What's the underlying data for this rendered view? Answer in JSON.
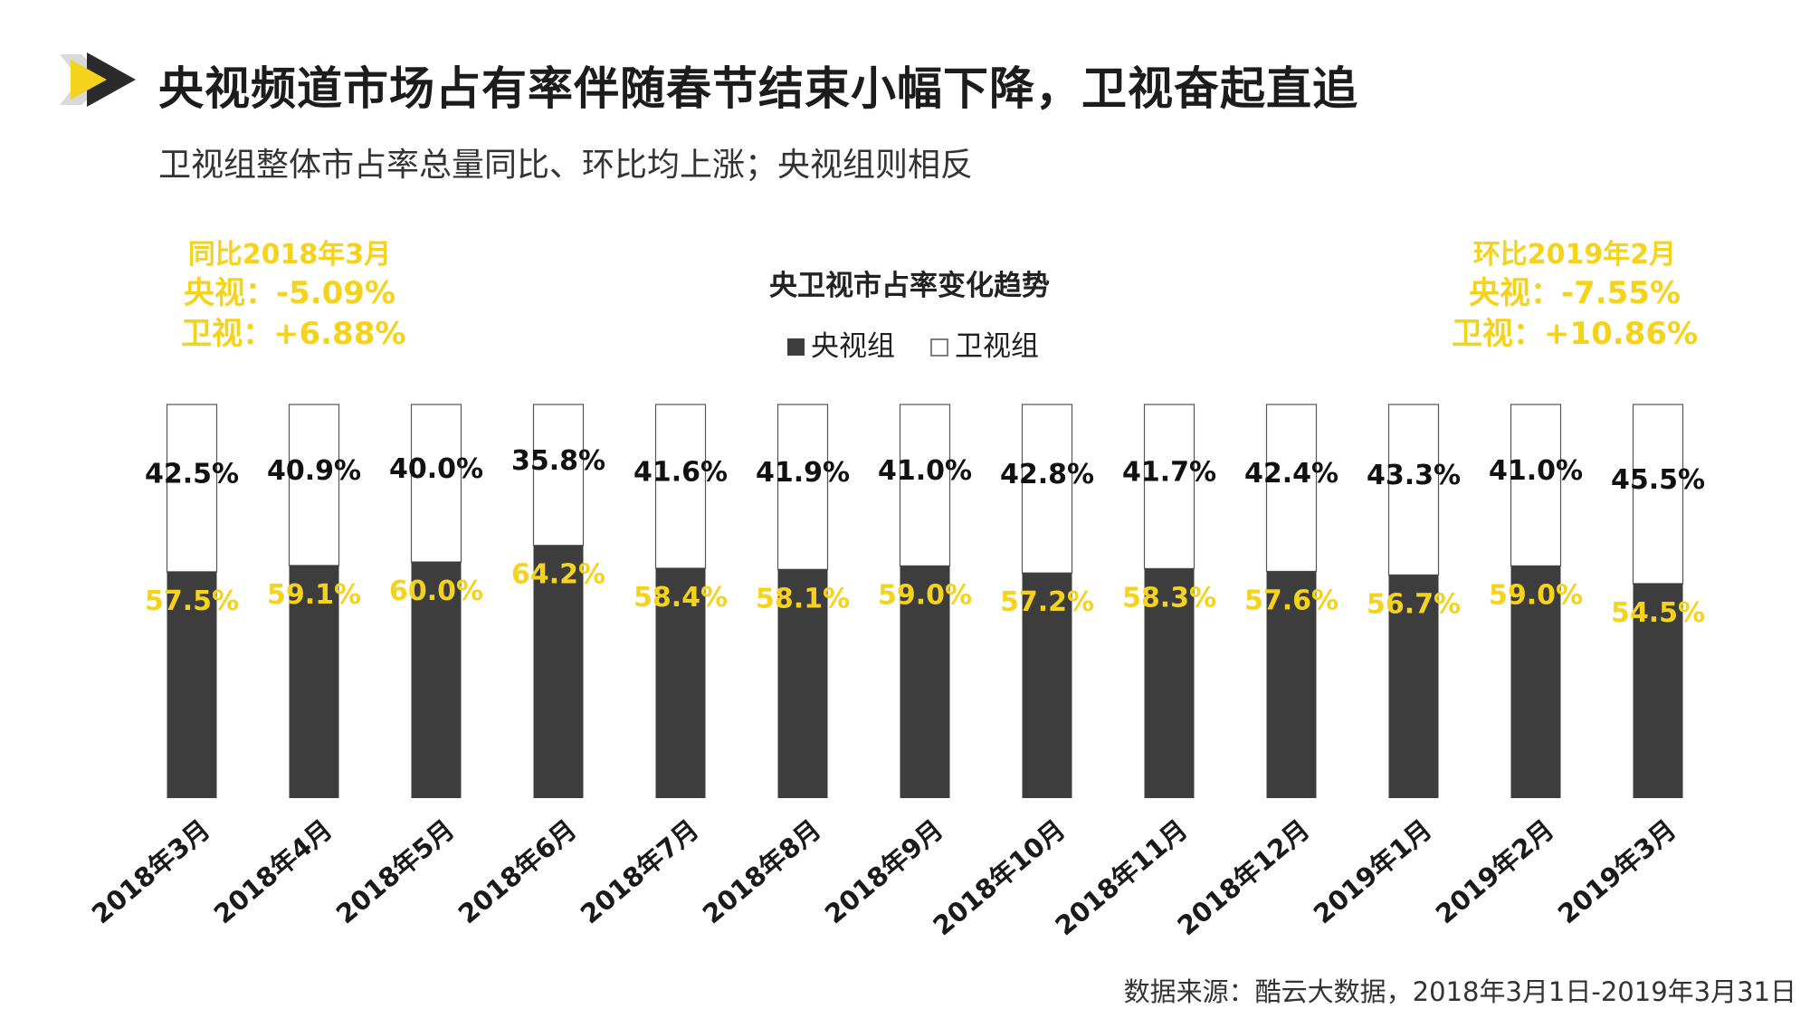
{
  "header": {
    "title": "央视频道市场占有率伴随春节结束小幅下降，卫视奋起直追",
    "subtitle": "卫视组整体市占率总量同比、环比均上涨；央视组则相反"
  },
  "comparison_yoy": {
    "heading": "同比2018年3月",
    "cctv_line": "央视：-5.09%",
    "satellite_line": "卫视：+6.88%"
  },
  "comparison_mom": {
    "heading": "环比2019年2月",
    "cctv_line": "央视：-7.55%",
    "satellite_line": "卫视：+10.86%"
  },
  "source": "数据来源：酷云大数据，2018年3月1日-2019年3月31日",
  "colors": {
    "cctv": "#3d3d3d",
    "satellite": "#ffffff",
    "accent": "#f5d31d",
    "title": "#1c1c1c"
  },
  "chart_data": {
    "type": "bar",
    "stacked": true,
    "title": "央卫视市占率变化趋势",
    "categories": [
      "2018年3月",
      "2018年4月",
      "2018年5月",
      "2018年6月",
      "2018年7月",
      "2018年8月",
      "2018年9月",
      "2018年10月",
      "2018年11月",
      "2018年12月",
      "2019年1月",
      "2019年2月",
      "2019年3月"
    ],
    "series": [
      {
        "name": "央视组",
        "values": [
          57.5,
          59.1,
          60.0,
          64.2,
          58.4,
          58.1,
          59.0,
          57.2,
          58.3,
          57.6,
          56.7,
          59.0,
          54.5
        ],
        "labels": [
          "57.5%",
          "59.1%",
          "60.0%",
          "64.2%",
          "58.4%",
          "58.1%",
          "59.0%",
          "57.2%",
          "58.3%",
          "57.6%",
          "56.7%",
          "59.0%",
          "54.5%"
        ]
      },
      {
        "name": "卫视组",
        "values": [
          42.5,
          40.9,
          40.0,
          35.8,
          41.6,
          41.9,
          41.0,
          42.8,
          41.7,
          42.4,
          43.3,
          41.0,
          45.5
        ],
        "labels": [
          "42.5%",
          "40.9%",
          "40.0%",
          "35.8%",
          "41.6%",
          "41.9%",
          "41.0%",
          "42.8%",
          "41.7%",
          "42.4%",
          "43.3%",
          "41.0%",
          "45.5%"
        ]
      }
    ],
    "legend_position": "top-center",
    "ylim": [
      0,
      100
    ],
    "xlabel": "",
    "ylabel": ""
  }
}
